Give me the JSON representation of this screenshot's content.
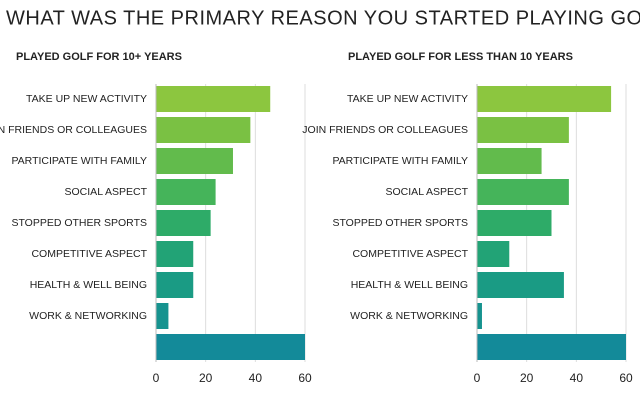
{
  "title": "WHAT WAS THE PRIMARY REASON YOU STARTED PLAYING GOLF?",
  "chart_data": [
    {
      "type": "bar",
      "subtitle": "PLAYED GOLF FOR 10+ YEARS",
      "categories": [
        "TAKE UP NEW ACTIVITY",
        "JOIN FRIENDS OR COLLEAGUES",
        "PARTICIPATE WITH FAMILY",
        "SOCIAL ASPECT",
        "STOPPED OTHER SPORTS",
        "COMPETITIVE ASPECT",
        "HEALTH & WELL BEING",
        "WORK & NETWORKING",
        null
      ],
      "values": [
        46,
        38,
        31,
        24,
        22,
        15,
        15,
        5,
        60
      ],
      "colors": [
        "#8cc63f",
        "#7ac143",
        "#62bb4c",
        "#45b45a",
        "#2eab68",
        "#22a376",
        "#1a9b84",
        "#16938f",
        "#138a99"
      ],
      "xlim": [
        0,
        60
      ],
      "xticks": [
        0,
        20,
        40,
        60
      ],
      "grid": true
    },
    {
      "type": "bar",
      "subtitle": "PLAYED GOLF FOR LESS THAN 10 YEARS",
      "categories": [
        "TAKE UP NEW ACTIVITY",
        "JOIN FRIENDS OR COLLEAGUES",
        "PARTICIPATE WITH FAMILY",
        "SOCIAL ASPECT",
        "STOPPED OTHER SPORTS",
        "COMPETITIVE ASPECT",
        "HEALTH & WELL BEING",
        "WORK & NETWORKING",
        null
      ],
      "values": [
        54,
        37,
        26,
        37,
        30,
        13,
        35,
        2,
        60
      ],
      "colors": [
        "#8cc63f",
        "#7ac143",
        "#62bb4c",
        "#45b45a",
        "#2eab68",
        "#22a376",
        "#1a9b84",
        "#16938f",
        "#138a99"
      ],
      "xlim": [
        0,
        60
      ],
      "xticks": [
        0,
        20,
        40,
        60
      ],
      "grid": true
    }
  ]
}
